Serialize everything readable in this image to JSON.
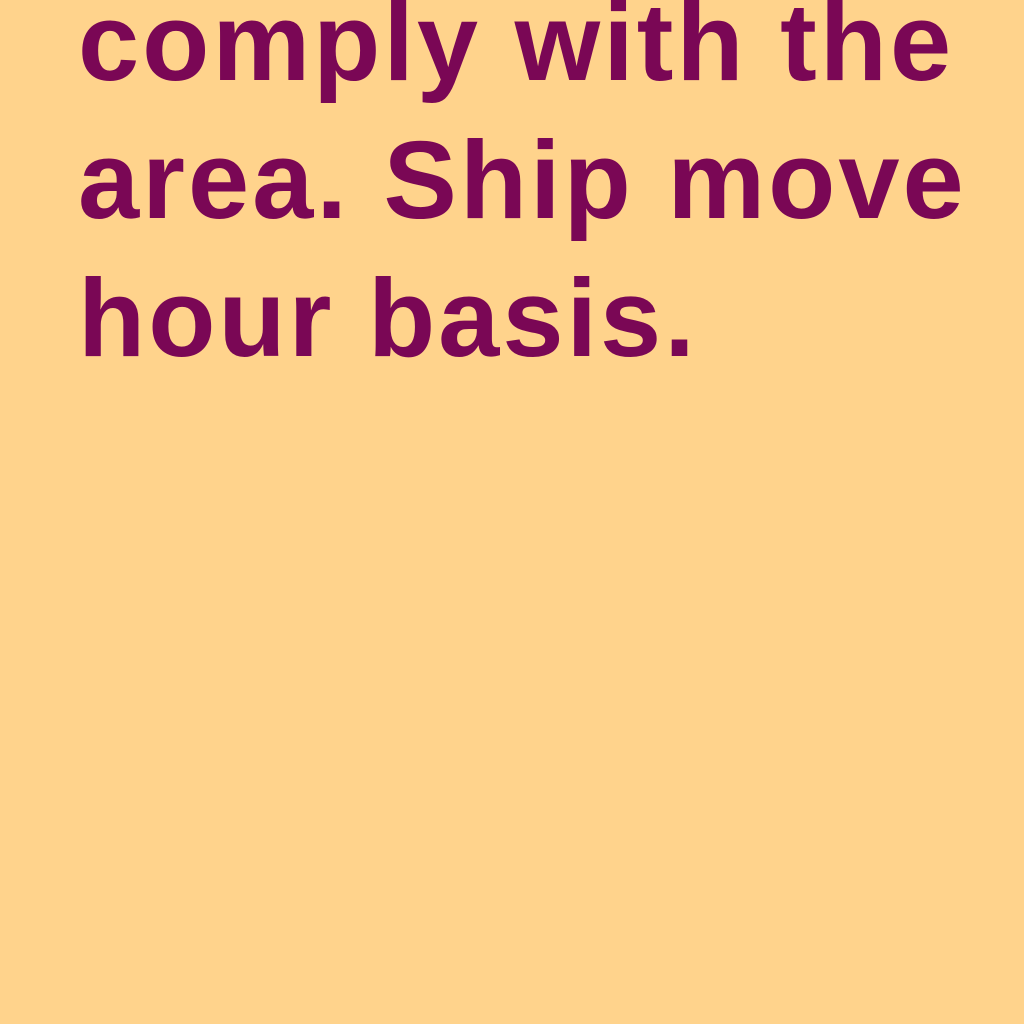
{
  "message": {
    "lines": [
      "comply with the",
      "area. Ship move",
      "hour basis."
    ]
  },
  "colors": {
    "background": "#ffd38c",
    "text": "#7a0755"
  }
}
